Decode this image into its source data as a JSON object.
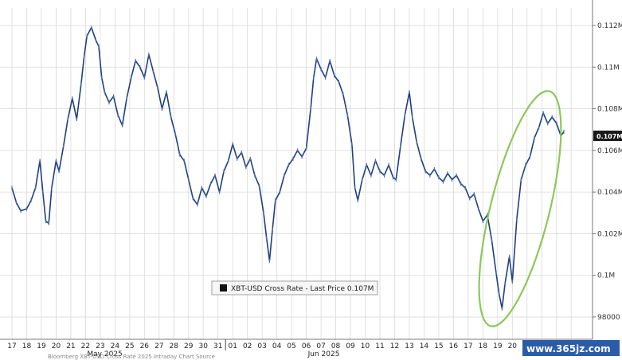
{
  "chart_data": {
    "type": "line",
    "title": "",
    "xlabel": "",
    "ylabel": "",
    "legend": {
      "label": "XBT-USD Cross Rate - Last Price 0.107M",
      "placement": "bottom-center"
    },
    "last_price_label": "0.107M",
    "ylim": [
      97000,
      113500
    ],
    "y_ticks": [
      {
        "value": 112000,
        "label": "0.112M"
      },
      {
        "value": 110000,
        "label": "0.11M"
      },
      {
        "value": 108000,
        "label": "0.108M"
      },
      {
        "value": 106000,
        "label": "0.106M"
      },
      {
        "value": 104000,
        "label": "0.104M"
      },
      {
        "value": 102000,
        "label": "0.102M"
      },
      {
        "value": 100000,
        "label": "0.1M"
      },
      {
        "value": 98000,
        "label": "98000"
      }
    ],
    "x_ticks": [
      "17",
      "18",
      "19",
      "20",
      "21",
      "22",
      "23",
      "24",
      "25",
      "26",
      "27",
      "28",
      "29",
      "30",
      "31",
      "01",
      "02",
      "03",
      "04",
      "05",
      "06",
      "07",
      "08",
      "09",
      "10",
      "11",
      "12",
      "13",
      "14",
      "15",
      "16",
      "17",
      "18",
      "19",
      "20",
      "21",
      "22",
      "23",
      "24"
    ],
    "month_labels": [
      {
        "label": "May 2025",
        "tick_index": 5
      },
      {
        "label": "Jun 2025",
        "tick_index": 20
      }
    ],
    "grid": true,
    "series_color": "#1f3f80",
    "highlight_ellipse_color": "#8dc85a",
    "series": [
      {
        "values": [
          [
            0,
            104200
          ],
          [
            0.3,
            103500
          ],
          [
            0.6,
            103100
          ],
          [
            1.0,
            103200
          ],
          [
            1.3,
            103600
          ],
          [
            1.6,
            104200
          ],
          [
            1.9,
            105500
          ],
          [
            2.1,
            104000
          ],
          [
            2.3,
            102600
          ],
          [
            2.5,
            102500
          ],
          [
            2.7,
            104200
          ],
          [
            3.0,
            105500
          ],
          [
            3.2,
            105000
          ],
          [
            3.5,
            106200
          ],
          [
            3.8,
            107500
          ],
          [
            4.1,
            108500
          ],
          [
            4.4,
            107500
          ],
          [
            4.7,
            109200
          ],
          [
            4.9,
            110500
          ],
          [
            5.1,
            111500
          ],
          [
            5.4,
            111900
          ],
          [
            5.7,
            111300
          ],
          [
            5.9,
            111000
          ],
          [
            6.1,
            109500
          ],
          [
            6.3,
            108800
          ],
          [
            6.6,
            108300
          ],
          [
            6.9,
            108600
          ],
          [
            7.2,
            107700
          ],
          [
            7.5,
            107200
          ],
          [
            7.8,
            108500
          ],
          [
            8.1,
            109500
          ],
          [
            8.4,
            110300
          ],
          [
            8.7,
            110000
          ],
          [
            9.0,
            109500
          ],
          [
            9.3,
            110600
          ],
          [
            9.6,
            109800
          ],
          [
            9.9,
            109000
          ],
          [
            10.2,
            108000
          ],
          [
            10.5,
            108800
          ],
          [
            10.8,
            107600
          ],
          [
            11.1,
            106800
          ],
          [
            11.4,
            105800
          ],
          [
            11.7,
            105500
          ],
          [
            12.0,
            104600
          ],
          [
            12.3,
            103700
          ],
          [
            12.6,
            103400
          ],
          [
            12.9,
            104200
          ],
          [
            13.2,
            103800
          ],
          [
            13.5,
            104400
          ],
          [
            13.8,
            104800
          ],
          [
            14.1,
            104000
          ],
          [
            14.4,
            105000
          ],
          [
            14.7,
            105500
          ],
          [
            15.0,
            106300
          ],
          [
            15.3,
            105600
          ],
          [
            15.6,
            105900
          ],
          [
            15.9,
            105200
          ],
          [
            16.2,
            105600
          ],
          [
            16.5,
            104800
          ],
          [
            16.8,
            104300
          ],
          [
            17.1,
            103000
          ],
          [
            17.3,
            101800
          ],
          [
            17.5,
            100700
          ],
          [
            17.7,
            102200
          ],
          [
            17.9,
            103600
          ],
          [
            18.2,
            104000
          ],
          [
            18.5,
            104800
          ],
          [
            18.8,
            105300
          ],
          [
            19.1,
            105600
          ],
          [
            19.4,
            106000
          ],
          [
            19.7,
            105700
          ],
          [
            20.0,
            106100
          ],
          [
            20.3,
            108000
          ],
          [
            20.5,
            109500
          ],
          [
            20.7,
            110400
          ],
          [
            21.0,
            109900
          ],
          [
            21.3,
            109500
          ],
          [
            21.6,
            110300
          ],
          [
            21.9,
            109600
          ],
          [
            22.2,
            109300
          ],
          [
            22.5,
            108700
          ],
          [
            22.8,
            107700
          ],
          [
            23.1,
            106300
          ],
          [
            23.3,
            104200
          ],
          [
            23.5,
            103600
          ],
          [
            23.8,
            104600
          ],
          [
            24.1,
            105300
          ],
          [
            24.4,
            104800
          ],
          [
            24.7,
            105500
          ],
          [
            25.0,
            105000
          ],
          [
            25.3,
            104800
          ],
          [
            25.6,
            105300
          ],
          [
            25.9,
            104700
          ],
          [
            26.1,
            104600
          ],
          [
            26.4,
            106200
          ],
          [
            26.7,
            107700
          ],
          [
            27.0,
            108800
          ],
          [
            27.2,
            107600
          ],
          [
            27.5,
            106400
          ],
          [
            27.8,
            105600
          ],
          [
            28.1,
            105000
          ],
          [
            28.4,
            104800
          ],
          [
            28.7,
            105100
          ],
          [
            29.0,
            104700
          ],
          [
            29.3,
            104500
          ],
          [
            29.6,
            104900
          ],
          [
            29.9,
            104600
          ],
          [
            30.2,
            104800
          ],
          [
            30.5,
            104400
          ],
          [
            30.8,
            104200
          ],
          [
            31.1,
            103700
          ],
          [
            31.4,
            103900
          ],
          [
            31.7,
            103200
          ],
          [
            32.0,
            102600
          ],
          [
            32.3,
            102900
          ],
          [
            32.6,
            101700
          ],
          [
            32.9,
            100100
          ],
          [
            33.1,
            99100
          ],
          [
            33.3,
            98400
          ],
          [
            33.5,
            99600
          ],
          [
            33.8,
            100900
          ],
          [
            34.0,
            99700
          ],
          [
            34.3,
            102700
          ],
          [
            34.6,
            104600
          ],
          [
            34.9,
            105300
          ],
          [
            35.2,
            105700
          ],
          [
            35.5,
            106600
          ],
          [
            35.8,
            107100
          ],
          [
            36.1,
            107800
          ],
          [
            36.4,
            107300
          ],
          [
            36.7,
            107600
          ],
          [
            37.0,
            107300
          ],
          [
            37.3,
            106700
          ],
          [
            37.5,
            106900
          ]
        ]
      }
    ]
  },
  "watermark": "www.365jz.com",
  "footer_text": "Bloomberg XBT-USD Cross Rate 2025 Intraday Chart Source"
}
